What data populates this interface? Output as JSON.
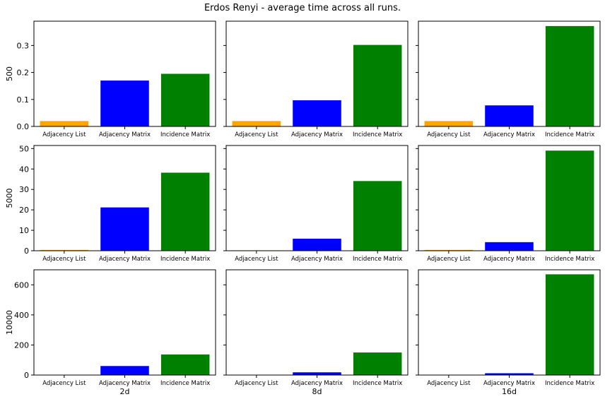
{
  "figure": {
    "title": "Erdos Renyi - average time across all runs."
  },
  "chart_data": {
    "type": "bar",
    "title": "Erdos Renyi - average time across all runs.",
    "categories": [
      "Adjacency List",
      "Adjacency Matrix",
      "Incidence Matrix"
    ],
    "colors": [
      "#ffa500",
      "#0000ff",
      "#008000"
    ],
    "row_labels": [
      "500",
      "5000",
      "10000"
    ],
    "col_labels": [
      "2d",
      "8d",
      "16d"
    ],
    "grid": false,
    "sharey": "row",
    "rows": [
      {
        "ylabel": "500",
        "ylim": [
          0,
          0.39
        ],
        "yticks": [
          0.0,
          0.1,
          0.2,
          0.3
        ],
        "ytick_labels": [
          "0.0",
          "0.1",
          "0.2",
          "0.3"
        ],
        "panels": [
          {
            "xlabel": "",
            "values": [
              0.02,
              0.17,
              0.195
            ]
          },
          {
            "xlabel": "",
            "values": [
              0.02,
              0.097,
              0.302
            ]
          },
          {
            "xlabel": "",
            "values": [
              0.02,
              0.078,
              0.372
            ]
          }
        ]
      },
      {
        "ylabel": "5000",
        "ylim": [
          0,
          51.5
        ],
        "yticks": [
          0,
          10,
          20,
          30,
          40,
          50
        ],
        "ytick_labels": [
          "0",
          "10",
          "20",
          "30",
          "40",
          "50"
        ],
        "panels": [
          {
            "xlabel": "",
            "values": [
              0.4,
              21.2,
              38.2
            ]
          },
          {
            "xlabel": "",
            "values": [
              0.2,
              5.9,
              34.1
            ]
          },
          {
            "xlabel": "",
            "values": [
              0.4,
              4.2,
              49.0
            ]
          }
        ]
      },
      {
        "ylabel": "10000",
        "ylim": [
          0,
          700
        ],
        "yticks": [
          0,
          200,
          400,
          600
        ],
        "ytick_labels": [
          "0",
          "200",
          "400",
          "600"
        ],
        "panels": [
          {
            "xlabel": "2d",
            "values": [
              1,
              60,
              137
            ]
          },
          {
            "xlabel": "8d",
            "values": [
              1,
              18,
              150
            ]
          },
          {
            "xlabel": "16d",
            "values": [
              1,
              12,
              670
            ]
          }
        ]
      }
    ]
  }
}
